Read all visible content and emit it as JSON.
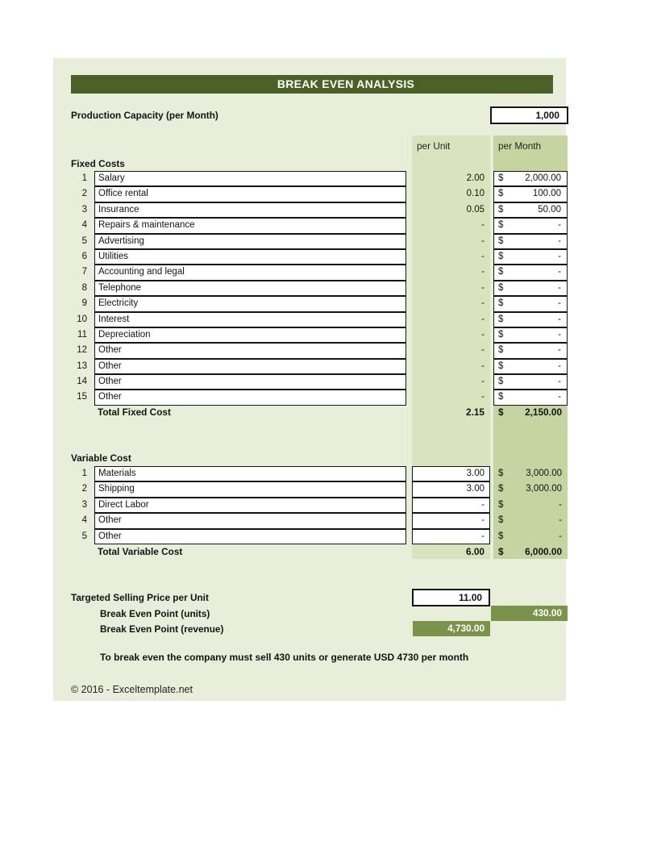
{
  "title": "BREAK EVEN ANALYSIS",
  "currency_symbol": "$",
  "production_capacity": {
    "label": "Production Capacity (per Month)",
    "value": "1,000"
  },
  "columns": {
    "per_unit": "per Unit",
    "per_month": "per Month"
  },
  "fixed_costs": {
    "section_label": "Fixed Costs",
    "rows": [
      {
        "num": "1",
        "label": "Salary",
        "per_unit": "2.00",
        "per_month": "2,000.00"
      },
      {
        "num": "2",
        "label": "Office rental",
        "per_unit": "0.10",
        "per_month": "100.00"
      },
      {
        "num": "3",
        "label": "Insurance",
        "per_unit": "0.05",
        "per_month": "50.00"
      },
      {
        "num": "4",
        "label": "Repairs & maintenance",
        "per_unit": "-",
        "per_month": "-"
      },
      {
        "num": "5",
        "label": "Advertising",
        "per_unit": "-",
        "per_month": "-"
      },
      {
        "num": "6",
        "label": "Utilities",
        "per_unit": "-",
        "per_month": "-"
      },
      {
        "num": "7",
        "label": "Accounting and legal",
        "per_unit": "-",
        "per_month": "-"
      },
      {
        "num": "8",
        "label": "Telephone",
        "per_unit": "-",
        "per_month": "-"
      },
      {
        "num": "9",
        "label": "Electricity",
        "per_unit": "-",
        "per_month": "-"
      },
      {
        "num": "10",
        "label": "Interest",
        "per_unit": "-",
        "per_month": "-"
      },
      {
        "num": "11",
        "label": "Depreciation",
        "per_unit": "-",
        "per_month": "-"
      },
      {
        "num": "12",
        "label": "Other",
        "per_unit": "-",
        "per_month": "-"
      },
      {
        "num": "13",
        "label": "Other",
        "per_unit": "-",
        "per_month": "-"
      },
      {
        "num": "14",
        "label": "Other",
        "per_unit": "-",
        "per_month": "-"
      },
      {
        "num": "15",
        "label": "Other",
        "per_unit": "-",
        "per_month": "-"
      }
    ],
    "total": {
      "label": "Total Fixed Cost",
      "per_unit": "2.15",
      "per_month": "2,150.00"
    }
  },
  "variable_costs": {
    "section_label": "Variable Cost",
    "rows": [
      {
        "num": "1",
        "label": "Materials",
        "per_unit": "3.00",
        "per_month": "3,000.00"
      },
      {
        "num": "2",
        "label": "Shipping",
        "per_unit": "3.00",
        "per_month": "3,000.00"
      },
      {
        "num": "3",
        "label": "Direct Labor",
        "per_unit": "-",
        "per_month": "-"
      },
      {
        "num": "4",
        "label": "Other",
        "per_unit": "-",
        "per_month": "-"
      },
      {
        "num": "5",
        "label": "Other",
        "per_unit": "-",
        "per_month": "-"
      }
    ],
    "total": {
      "label": "Total Variable Cost",
      "per_unit": "6.00",
      "per_month": "6,000.00"
    }
  },
  "summary": {
    "selling_price": {
      "label": "Targeted Selling Price per Unit",
      "value": "11.00"
    },
    "bep_units": {
      "label": "Break Even Point (units)",
      "value": "430.00"
    },
    "bep_revenue": {
      "label": "Break Even Point (revenue)",
      "value": "4,730.00"
    },
    "note": "To break even the company must sell 430 units or generate USD 4730 per month"
  },
  "footer": {
    "copyright": "© 2016 - Exceltemplate.net"
  },
  "colors": {
    "panel_background": "#E9EEDA",
    "title_bar": "#4C6127",
    "per_unit_band": "#D9E3BD",
    "per_month_band": "#C6D4A1",
    "highlight_green": "#79944A",
    "cell_background": "#FFFFFF",
    "border": "#151515"
  }
}
